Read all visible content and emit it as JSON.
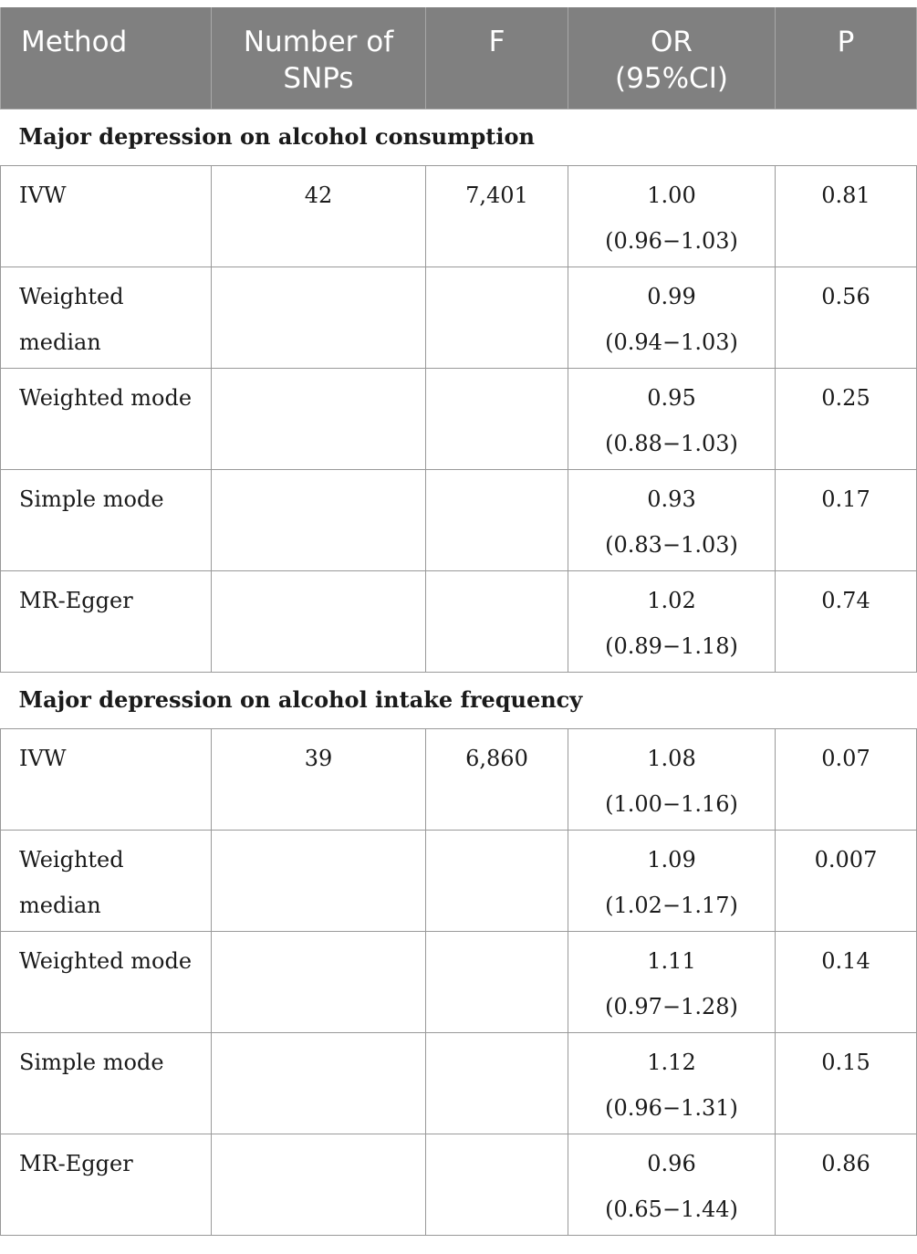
{
  "table": {
    "headers": [
      [
        "Method"
      ],
      [
        "Number of",
        "SNPs"
      ],
      [
        "F"
      ],
      [
        "OR",
        "(95%CI)"
      ],
      [
        "P"
      ]
    ],
    "sections": [
      {
        "title": "Major depression on alcohol consumption",
        "rows": [
          {
            "method": [
              "IVW"
            ],
            "snps": "42",
            "f": "7,401",
            "or": "1.00",
            "ci": "(0.96−1.03)",
            "p": "0.81"
          },
          {
            "method": [
              "Weighted",
              "median"
            ],
            "snps": "",
            "f": "",
            "or": "0.99",
            "ci": "(0.94−1.03)",
            "p": "0.56"
          },
          {
            "method": [
              "Weighted mode"
            ],
            "snps": "",
            "f": "",
            "or": "0.95",
            "ci": "(0.88−1.03)",
            "p": "0.25"
          },
          {
            "method": [
              "Simple mode"
            ],
            "snps": "",
            "f": "",
            "or": "0.93",
            "ci": "(0.83−1.03)",
            "p": "0.17"
          },
          {
            "method": [
              "MR-Egger"
            ],
            "snps": "",
            "f": "",
            "or": "1.02",
            "ci": "(0.89−1.18)",
            "p": "0.74"
          }
        ]
      },
      {
        "title": "Major depression on alcohol intake frequency",
        "rows": [
          {
            "method": [
              "IVW"
            ],
            "snps": "39",
            "f": "6,860",
            "or": "1.08",
            "ci": "(1.00−1.16)",
            "p": "0.07"
          },
          {
            "method": [
              "Weighted",
              "median"
            ],
            "snps": "",
            "f": "",
            "or": "1.09",
            "ci": "(1.02−1.17)",
            "p": "0.007"
          },
          {
            "method": [
              "Weighted mode"
            ],
            "snps": "",
            "f": "",
            "or": "1.11",
            "ci": "(0.97−1.28)",
            "p": "0.14"
          },
          {
            "method": [
              "Simple mode"
            ],
            "snps": "",
            "f": "",
            "or": "1.12",
            "ci": "(0.96−1.31)",
            "p": "0.15"
          },
          {
            "method": [
              "MR-Egger"
            ],
            "snps": "",
            "f": "",
            "or": "0.96",
            "ci": "(0.65−1.44)",
            "p": "0.86"
          }
        ]
      }
    ]
  }
}
